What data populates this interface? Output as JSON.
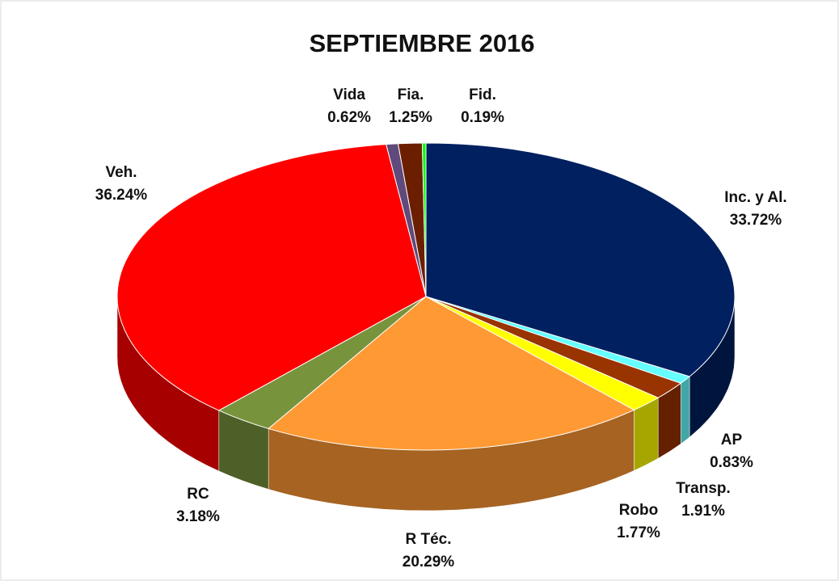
{
  "chart_data": {
    "type": "pie",
    "title": "SEPTIEMBRE 2016",
    "categories": [
      "Inc. y Al.",
      "AP",
      "Transp.",
      "Robo",
      "R Téc.",
      "RC",
      "Veh.",
      "Vida",
      "Fia.",
      "Fid."
    ],
    "values": [
      33.72,
      0.83,
      1.91,
      1.77,
      20.29,
      3.18,
      36.24,
      0.62,
      1.25,
      0.19
    ],
    "value_labels": [
      "33.72%",
      "0.83%",
      "1.91%",
      "1.77%",
      "20.29%",
      "3.18%",
      "36.24%",
      "0.62%",
      "1.25%",
      "0.19%"
    ],
    "colors": [
      "#002060",
      "#66ffff",
      "#993300",
      "#ffff00",
      "#ff9933",
      "#77933c",
      "#ff0000",
      "#604a7b",
      "#6b1f00",
      "#00ff00"
    ]
  }
}
